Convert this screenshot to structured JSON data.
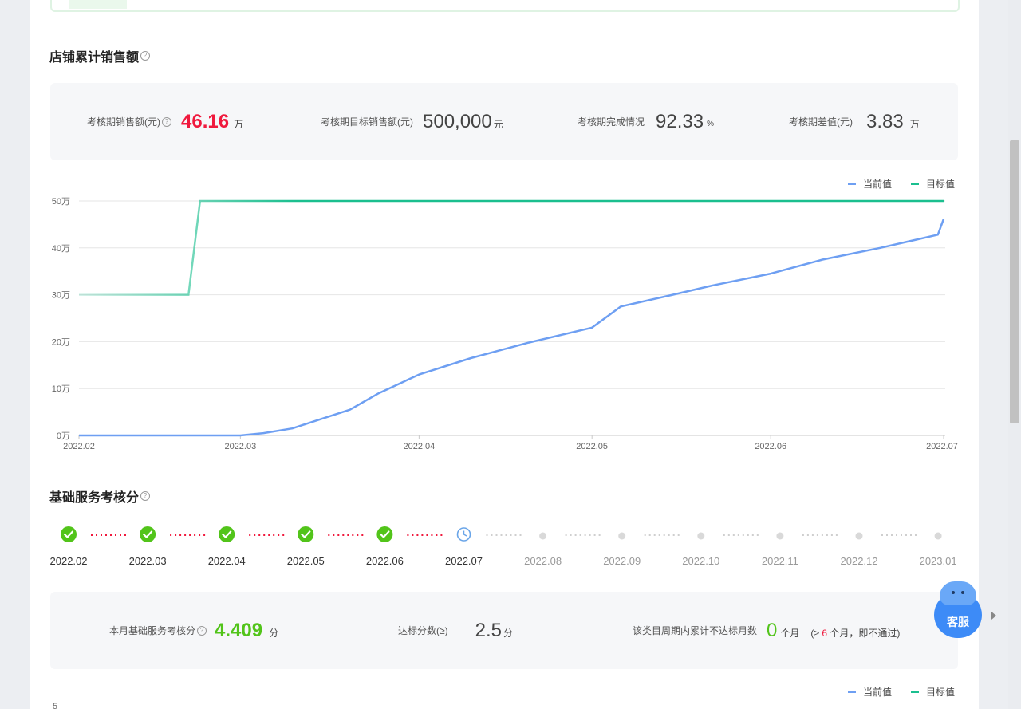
{
  "sales": {
    "title": "店铺累计销售额",
    "stats": [
      {
        "label": "考核期销售额(元)",
        "value": "46.16",
        "unit": "万"
      },
      {
        "label": "考核期目标销售额(元)",
        "value": "500,000",
        "unit": "元"
      },
      {
        "label": "考核期完成情况",
        "value": "92.33",
        "unit": "%"
      },
      {
        "label": "考核期差值(元)",
        "value": "3.83",
        "unit": "万"
      }
    ],
    "legend": {
      "current": "当前值",
      "target": "目标值"
    }
  },
  "colors": {
    "current": "#6e9ff2",
    "target": "#1bbf8f",
    "highlight_red": "#f0193d",
    "pass_green": "#52c41a",
    "pending_blue": "#6aa5e8"
  },
  "chart_data": {
    "type": "line",
    "title": "店铺累计销售额",
    "xlabel": "",
    "ylabel": "",
    "x_ticks": [
      "2022.02",
      "2022.03",
      "2022.04",
      "2022.05",
      "2022.06",
      "2022.07"
    ],
    "y_ticks": [
      "0万",
      "10万",
      "20万",
      "30万",
      "40万",
      "50万"
    ],
    "ylim": [
      0,
      500000
    ],
    "grid": true,
    "legend_position": "top-right",
    "series": [
      {
        "name": "当前值",
        "color": "#6e9ff2",
        "points": [
          [
            "2022-02-01",
            0
          ],
          [
            "2022-03-01",
            0
          ],
          [
            "2022-03-05",
            5000
          ],
          [
            "2022-03-10",
            15000
          ],
          [
            "2022-03-15",
            35000
          ],
          [
            "2022-03-20",
            55000
          ],
          [
            "2022-03-25",
            90000
          ],
          [
            "2022-04-01",
            130000
          ],
          [
            "2022-04-10",
            165000
          ],
          [
            "2022-04-20",
            198000
          ],
          [
            "2022-05-01",
            230000
          ],
          [
            "2022-05-06",
            275000
          ],
          [
            "2022-05-15",
            300000
          ],
          [
            "2022-05-22",
            320000
          ],
          [
            "2022-06-01",
            345000
          ],
          [
            "2022-06-10",
            375000
          ],
          [
            "2022-06-20",
            400000
          ],
          [
            "2022-06-30",
            428000
          ],
          [
            "2022-07-01",
            461600
          ]
        ]
      },
      {
        "name": "目标值",
        "color": "#1bbf8f",
        "points": [
          [
            "2022-02-01",
            300000
          ],
          [
            "2022-02-20",
            300000
          ],
          [
            "2022-02-22",
            500000
          ],
          [
            "2022-07-01",
            500000
          ]
        ]
      }
    ]
  },
  "service": {
    "title": "基础服务考核分",
    "months": [
      {
        "label": "2022.02",
        "status": "pass"
      },
      {
        "label": "2022.03",
        "status": "pass"
      },
      {
        "label": "2022.04",
        "status": "pass"
      },
      {
        "label": "2022.05",
        "status": "pass"
      },
      {
        "label": "2022.06",
        "status": "pass"
      },
      {
        "label": "2022.07",
        "status": "current"
      },
      {
        "label": "2022.08",
        "status": "future"
      },
      {
        "label": "2022.09",
        "status": "future"
      },
      {
        "label": "2022.10",
        "status": "future"
      },
      {
        "label": "2022.11",
        "status": "future"
      },
      {
        "label": "2022.12",
        "status": "future"
      },
      {
        "label": "2023.01",
        "status": "future"
      }
    ],
    "score_label": "本月基础服务考核分",
    "score_value": "4.409",
    "score_unit": "分",
    "threshold_label": "达标分数(≥)",
    "threshold_value": "2.5",
    "threshold_unit": "分",
    "fail_label": "该类目周期内累计不达标月数",
    "fail_value": "0",
    "fail_unit": "个月",
    "fail_note_prefix": "(≥",
    "fail_note_num": "6",
    "fail_note_suffix": "个月，即不通过)",
    "legend": {
      "current": "当前值",
      "target": "目标值"
    },
    "next_chart_top_tick": "5"
  },
  "customer_service": {
    "label": "客服"
  }
}
